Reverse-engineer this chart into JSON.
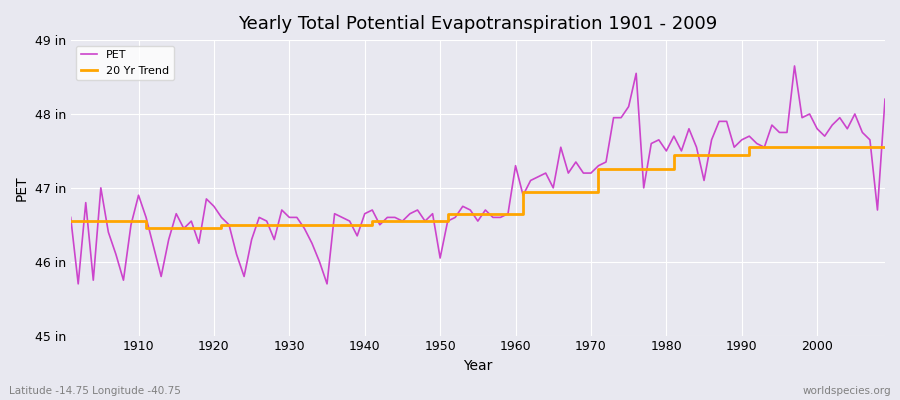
{
  "title": "Yearly Total Potential Evapotranspiration 1901 - 2009",
  "xlabel": "Year",
  "ylabel": "PET",
  "bottom_left_label": "Latitude -14.75 Longitude -40.75",
  "bottom_right_label": "worldspecies.org",
  "bg_color": "#e8e8f0",
  "plot_bg_color": "#e8e8f0",
  "pet_color": "#cc44cc",
  "trend_color": "#ffa500",
  "ylim": [
    45,
    49
  ],
  "yticks": [
    45,
    46,
    47,
    48,
    49
  ],
  "ytick_labels": [
    "45 in",
    "46 in",
    "47 in",
    "48 in",
    "49 in"
  ],
  "years": [
    1901,
    1902,
    1903,
    1904,
    1905,
    1906,
    1907,
    1908,
    1909,
    1910,
    1911,
    1912,
    1913,
    1914,
    1915,
    1916,
    1917,
    1918,
    1919,
    1920,
    1921,
    1922,
    1923,
    1924,
    1925,
    1926,
    1927,
    1928,
    1929,
    1930,
    1931,
    1932,
    1933,
    1934,
    1935,
    1936,
    1937,
    1938,
    1939,
    1940,
    1941,
    1942,
    1943,
    1944,
    1945,
    1946,
    1947,
    1948,
    1949,
    1950,
    1951,
    1952,
    1953,
    1954,
    1955,
    1956,
    1957,
    1958,
    1959,
    1960,
    1961,
    1962,
    1963,
    1964,
    1965,
    1966,
    1967,
    1968,
    1969,
    1970,
    1971,
    1972,
    1973,
    1974,
    1975,
    1976,
    1977,
    1978,
    1979,
    1980,
    1981,
    1982,
    1983,
    1984,
    1985,
    1986,
    1987,
    1988,
    1989,
    1990,
    1991,
    1992,
    1993,
    1994,
    1995,
    1996,
    1997,
    1998,
    1999,
    2000,
    2001,
    2002,
    2003,
    2004,
    2005,
    2006,
    2007,
    2008,
    2009
  ],
  "pet_values": [
    46.6,
    45.7,
    46.8,
    45.75,
    47.0,
    46.4,
    46.1,
    45.75,
    46.5,
    46.9,
    46.6,
    46.2,
    45.8,
    46.3,
    46.65,
    46.45,
    46.55,
    46.25,
    46.85,
    46.75,
    46.6,
    46.5,
    46.1,
    45.8,
    46.3,
    46.6,
    46.55,
    46.3,
    46.7,
    46.6,
    46.6,
    46.45,
    46.25,
    46.0,
    45.7,
    46.65,
    46.6,
    46.55,
    46.35,
    46.65,
    46.7,
    46.5,
    46.6,
    46.6,
    46.55,
    46.65,
    46.7,
    46.55,
    46.65,
    46.05,
    46.55,
    46.6,
    46.75,
    46.7,
    46.55,
    46.7,
    46.6,
    46.6,
    46.65,
    47.3,
    46.9,
    47.1,
    47.15,
    47.2,
    47.0,
    47.55,
    47.2,
    47.35,
    47.2,
    47.2,
    47.3,
    47.35,
    47.95,
    47.95,
    48.1,
    48.55,
    47.0,
    47.6,
    47.65,
    47.5,
    47.7,
    47.5,
    47.8,
    47.55,
    47.1,
    47.65,
    47.9,
    47.9,
    47.55,
    47.65,
    47.7,
    47.6,
    47.55,
    47.85,
    47.75,
    47.75,
    48.65,
    47.95,
    48.0,
    47.8,
    47.7,
    47.85,
    47.95,
    47.8,
    48.0,
    47.75,
    47.65,
    46.7,
    48.2
  ],
  "trend_values": [
    46.55,
    46.55,
    46.55,
    46.55,
    46.55,
    46.55,
    46.55,
    46.55,
    46.55,
    46.55,
    46.45,
    46.45,
    46.45,
    46.45,
    46.45,
    46.45,
    46.45,
    46.45,
    46.45,
    46.45,
    46.5,
    46.5,
    46.5,
    46.5,
    46.5,
    46.5,
    46.5,
    46.5,
    46.5,
    46.5,
    46.5,
    46.5,
    46.5,
    46.5,
    46.5,
    46.5,
    46.5,
    46.5,
    46.5,
    46.5,
    46.55,
    46.55,
    46.55,
    46.55,
    46.55,
    46.55,
    46.55,
    46.55,
    46.55,
    46.55,
    46.65,
    46.65,
    46.65,
    46.65,
    46.65,
    46.65,
    46.65,
    46.65,
    46.65,
    46.65,
    46.95,
    46.95,
    46.95,
    46.95,
    46.95,
    46.95,
    46.95,
    46.95,
    46.95,
    46.95,
    47.25,
    47.25,
    47.25,
    47.25,
    47.25,
    47.25,
    47.25,
    47.25,
    47.25,
    47.25,
    47.45,
    47.45,
    47.45,
    47.45,
    47.45,
    47.45,
    47.45,
    47.45,
    47.45,
    47.45,
    47.55,
    47.55,
    47.55,
    47.55,
    47.55,
    47.55,
    47.55,
    47.55,
    47.55,
    47.55,
    47.55,
    47.55,
    47.55,
    47.55,
    47.55,
    47.55,
    47.55,
    47.55,
    47.55
  ]
}
